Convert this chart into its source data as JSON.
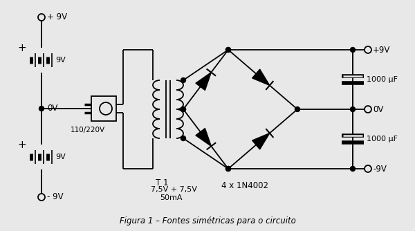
{
  "bg_color": "#e8e8e8",
  "line_color": "#000000",
  "title": "Figura 1 – Fontes simétricas para o circuito",
  "labels": {
    "plus9V_top": "+ 9V",
    "minus9V_bot": "- 9V",
    "battery1": "9V",
    "battery2": "9V",
    "zero_mid": "0V",
    "zero_right": "0V",
    "plus9V_right": "+9V",
    "minus9V_right": "-9V",
    "plug_label": "110/220V",
    "transformer_label": "T 1",
    "transformer_spec": "7,5V + 7,5V",
    "transformer_ma": "50mA",
    "diode_label": "4 x 1N4002",
    "cap1_label": "1000 μF",
    "cap2_label": "1000 μF",
    "plus_sign1": "+",
    "plus_sign2": "+"
  },
  "figsize": [
    6.0,
    3.34
  ],
  "dpi": 100,
  "xlim": [
    0,
    600
  ],
  "ylim": [
    0,
    334
  ]
}
